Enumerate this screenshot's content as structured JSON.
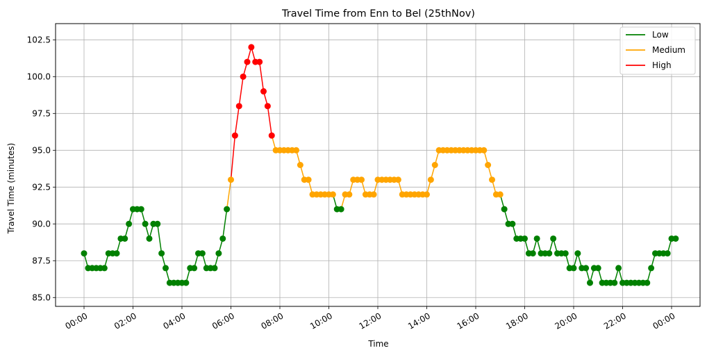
{
  "chart_data": {
    "type": "line",
    "title": "Travel Time from Enn to Bel (25thNov)",
    "xlabel": "Time",
    "ylabel": "Travel Time (minutes)",
    "ylim": [
      84.4,
      103.6
    ],
    "yticks": [
      85.0,
      87.5,
      90.0,
      92.5,
      95.0,
      97.5,
      100.0,
      102.5
    ],
    "ytick_labels": [
      "85.0",
      "87.5",
      "90.0",
      "92.5",
      "95.0",
      "97.5",
      "100.0",
      "102.5"
    ],
    "xticks": [
      "00:00",
      "02:00",
      "04:00",
      "06:00",
      "08:00",
      "10:00",
      "12:00",
      "14:00",
      "16:00",
      "18:00",
      "20:00",
      "22:00",
      "00:00"
    ],
    "grid": true,
    "legend_position": "top-right",
    "x_start": "00:00",
    "x_step_minutes": 10,
    "colors": {
      "Low": "#008000",
      "Medium": "#ffa500",
      "High": "#ff0000"
    },
    "series": [
      {
        "name": "Low"
      },
      {
        "name": "Medium"
      },
      {
        "name": "High"
      }
    ],
    "values": [
      88,
      87,
      87,
      87,
      87,
      87,
      88,
      88,
      88,
      89,
      89,
      90,
      91,
      91,
      91,
      90,
      89,
      90,
      90,
      88,
      87,
      86,
      86,
      86,
      86,
      86,
      87,
      87,
      88,
      88,
      87,
      87,
      87,
      88,
      89,
      91,
      93,
      96,
      98,
      100,
      101,
      102,
      101,
      101,
      99,
      98,
      96,
      95,
      95,
      95,
      95,
      95,
      95,
      94,
      93,
      93,
      92,
      92,
      92,
      92,
      92,
      92,
      91,
      91,
      92,
      92,
      93,
      93,
      93,
      92,
      92,
      92,
      93,
      93,
      93,
      93,
      93,
      93,
      92,
      92,
      92,
      92,
      92,
      92,
      92,
      93,
      94,
      95,
      95,
      95,
      95,
      95,
      95,
      95,
      95,
      95,
      95,
      95,
      95,
      94,
      93,
      92,
      92,
      91,
      90,
      90,
      89,
      89,
      89,
      88,
      88,
      89,
      88,
      88,
      88,
      89,
      88,
      88,
      88,
      87,
      87,
      88,
      87,
      87,
      86,
      87,
      87,
      86,
      86,
      86,
      86,
      87,
      86,
      86,
      86,
      86,
      86,
      86,
      86,
      87,
      88,
      88,
      88,
      88,
      89,
      89
    ],
    "levels": [
      "L",
      "L",
      "L",
      "L",
      "L",
      "L",
      "L",
      "L",
      "L",
      "L",
      "L",
      "L",
      "L",
      "L",
      "L",
      "L",
      "L",
      "L",
      "L",
      "L",
      "L",
      "L",
      "L",
      "L",
      "L",
      "L",
      "L",
      "L",
      "L",
      "L",
      "L",
      "L",
      "L",
      "L",
      "L",
      "L",
      "M",
      "H",
      "H",
      "H",
      "H",
      "H",
      "H",
      "H",
      "H",
      "H",
      "H",
      "M",
      "M",
      "M",
      "M",
      "M",
      "M",
      "M",
      "M",
      "M",
      "M",
      "M",
      "M",
      "M",
      "M",
      "M",
      "L",
      "L",
      "M",
      "M",
      "M",
      "M",
      "M",
      "M",
      "M",
      "M",
      "M",
      "M",
      "M",
      "M",
      "M",
      "M",
      "M",
      "M",
      "M",
      "M",
      "M",
      "M",
      "M",
      "M",
      "M",
      "M",
      "M",
      "M",
      "M",
      "M",
      "M",
      "M",
      "M",
      "M",
      "M",
      "M",
      "M",
      "M",
      "M",
      "M",
      "M",
      "L",
      "L",
      "L",
      "L",
      "L",
      "L",
      "L",
      "L",
      "L",
      "L",
      "L",
      "L",
      "L",
      "L",
      "L",
      "L",
      "L",
      "L",
      "L",
      "L",
      "L",
      "L",
      "L",
      "L",
      "L",
      "L",
      "L",
      "L",
      "L",
      "L",
      "L",
      "L",
      "L",
      "L",
      "L",
      "L",
      "L",
      "L",
      "L",
      "L",
      "L",
      "L",
      "L"
    ]
  }
}
